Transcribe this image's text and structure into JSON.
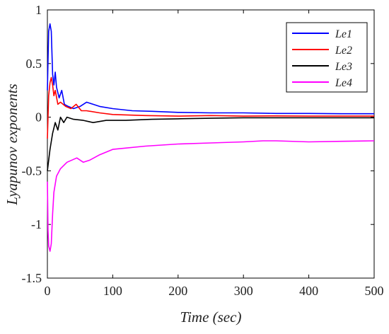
{
  "chart_data": {
    "type": "line",
    "title": "",
    "xlabel": "Time (sec)",
    "ylabel": "Lyapunov exponents",
    "xlim": [
      0,
      500
    ],
    "ylim": [
      -1.5,
      1
    ],
    "x_ticks": [
      "0",
      "100",
      "200",
      "300",
      "400",
      "500"
    ],
    "y_ticks": [
      "1",
      "0.5",
      "0",
      "-0.5",
      "-1",
      "-1.5"
    ],
    "grid": false,
    "legend_position": "top-right",
    "series": [
      {
        "name": "Le1",
        "color": "#0000ff",
        "points": [
          [
            0,
            0.25
          ],
          [
            2,
            0.8
          ],
          [
            4,
            0.87
          ],
          [
            6,
            0.8
          ],
          [
            8,
            0.4
          ],
          [
            10,
            0.3
          ],
          [
            12,
            0.42
          ],
          [
            14,
            0.28
          ],
          [
            18,
            0.18
          ],
          [
            22,
            0.25
          ],
          [
            26,
            0.12
          ],
          [
            32,
            0.1
          ],
          [
            40,
            0.08
          ],
          [
            50,
            0.1
          ],
          [
            60,
            0.14
          ],
          [
            70,
            0.12
          ],
          [
            80,
            0.1
          ],
          [
            100,
            0.08
          ],
          [
            130,
            0.06
          ],
          [
            160,
            0.055
          ],
          [
            200,
            0.045
          ],
          [
            250,
            0.04
          ],
          [
            300,
            0.04
          ],
          [
            350,
            0.035
          ],
          [
            400,
            0.035
          ],
          [
            450,
            0.032
          ],
          [
            500,
            0.032
          ]
        ]
      },
      {
        "name": "Le2",
        "color": "#ff0000",
        "points": [
          [
            0,
            -0.2
          ],
          [
            2,
            0.2
          ],
          [
            4,
            0.32
          ],
          [
            6,
            0.37
          ],
          [
            8,
            0.3
          ],
          [
            10,
            0.2
          ],
          [
            12,
            0.25
          ],
          [
            16,
            0.12
          ],
          [
            20,
            0.14
          ],
          [
            28,
            0.1
          ],
          [
            36,
            0.08
          ],
          [
            44,
            0.12
          ],
          [
            52,
            0.06
          ],
          [
            60,
            0.06
          ],
          [
            80,
            0.04
          ],
          [
            100,
            0.025
          ],
          [
            150,
            0.015
          ],
          [
            200,
            0.01
          ],
          [
            250,
            0.015
          ],
          [
            300,
            0.01
          ],
          [
            350,
            0.012
          ],
          [
            400,
            0.01
          ],
          [
            450,
            0.01
          ],
          [
            500,
            0.01
          ]
        ]
      },
      {
        "name": "Le3",
        "color": "#000000",
        "points": [
          [
            0,
            -0.5
          ],
          [
            4,
            -0.3
          ],
          [
            8,
            -0.15
          ],
          [
            12,
            -0.05
          ],
          [
            16,
            -0.12
          ],
          [
            20,
            0.0
          ],
          [
            25,
            -0.05
          ],
          [
            30,
            0.0
          ],
          [
            40,
            -0.02
          ],
          [
            55,
            -0.03
          ],
          [
            70,
            -0.05
          ],
          [
            90,
            -0.03
          ],
          [
            120,
            -0.03
          ],
          [
            160,
            -0.02
          ],
          [
            200,
            -0.015
          ],
          [
            250,
            -0.01
          ],
          [
            300,
            -0.005
          ],
          [
            350,
            -0.005
          ],
          [
            400,
            -0.005
          ],
          [
            450,
            -0.005
          ],
          [
            500,
            -0.005
          ]
        ]
      },
      {
        "name": "Le4",
        "color": "#ff00ff",
        "points": [
          [
            0,
            -0.6
          ],
          [
            1,
            -1.05
          ],
          [
            2,
            -1.2
          ],
          [
            4,
            -1.25
          ],
          [
            6,
            -1.18
          ],
          [
            8,
            -0.9
          ],
          [
            10,
            -0.7
          ],
          [
            14,
            -0.55
          ],
          [
            20,
            -0.48
          ],
          [
            30,
            -0.42
          ],
          [
            45,
            -0.38
          ],
          [
            55,
            -0.42
          ],
          [
            65,
            -0.4
          ],
          [
            80,
            -0.35
          ],
          [
            100,
            -0.3
          ],
          [
            150,
            -0.27
          ],
          [
            200,
            -0.25
          ],
          [
            250,
            -0.24
          ],
          [
            300,
            -0.23
          ],
          [
            330,
            -0.22
          ],
          [
            350,
            -0.22
          ],
          [
            400,
            -0.23
          ],
          [
            450,
            -0.225
          ],
          [
            500,
            -0.22
          ]
        ]
      }
    ]
  }
}
